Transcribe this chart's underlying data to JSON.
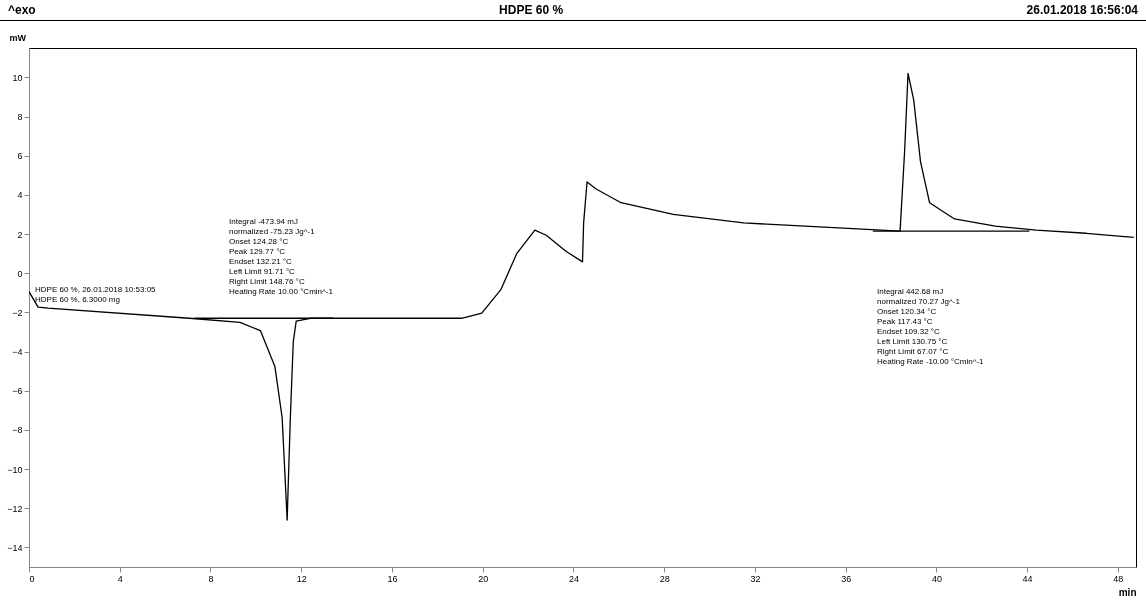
{
  "chart_data": {
    "type": "line",
    "title": "HDPE 60 %",
    "ylabel": "mW",
    "xlabel": "min",
    "xlim": [
      0,
      48.8
    ],
    "xticks": [
      0,
      4,
      8,
      12,
      16,
      20,
      24,
      28,
      32,
      36,
      40,
      44,
      48
    ],
    "ylim": [
      -15,
      11.5
    ],
    "yticks": [
      -14,
      -12,
      -10,
      -8,
      -6,
      -4,
      -2,
      0,
      2,
      4,
      6,
      8,
      10
    ],
    "grid": false,
    "line_style": "solid",
    "marker": "none",
    "series": [
      {
        "color": "#000000",
        "x": [
          0,
          0.4,
          0.84,
          7.07,
          9.3,
          10.2,
          10.84,
          11.16,
          11.38,
          11.52,
          11.65,
          11.78,
          12.4,
          19.07,
          19.96,
          20.8,
          21.5,
          22.3,
          22.8,
          23.7,
          24.4,
          24.45,
          24.6,
          25.0,
          26.1,
          28.4,
          31.5,
          35.9,
          38.4,
          38.6,
          38.75,
          39.0,
          39.3,
          39.7,
          40.8,
          42.6,
          44.4,
          46.6,
          48.7
        ],
        "values": [
          -0.94,
          -1.73,
          -1.78,
          -2.3,
          -2.51,
          -2.93,
          -4.76,
          -7.38,
          -12.6,
          -7.4,
          -3.5,
          -2.45,
          -2.3,
          -2.3,
          -2.04,
          -0.84,
          1.0,
          2.2,
          1.94,
          1.1,
          0.58,
          2.57,
          4.66,
          4.3,
          3.6,
          3.0,
          2.57,
          2.3,
          2.15,
          6.23,
          10.2,
          8.85,
          5.7,
          3.6,
          2.77,
          2.4,
          2.2,
          2.04,
          1.83
        ]
      },
      {
        "color": "#000000",
        "x": [
          7.3,
          13.4
        ],
        "values": [
          -2.3,
          -2.3
        ]
      },
      {
        "color": "#000000",
        "x": [
          37.2,
          44.1
        ],
        "values": [
          2.15,
          2.15
        ]
      }
    ],
    "annotations": [
      "^exo",
      "26.01.2018 16:56:04",
      "HDPE 60 %, 26.01.2018 10:53:05\nHDPE 60 %, 6.3000 mg",
      "Integral  -473.94 mJ\n  normalized  -75.23 Jg^-1\nOnset  124.28 °C\nPeak  129.77 °C\nEndset  132.21 °C\nLeft Limit  91.71 °C\nRight Limit  148.76 °C\nHeating Rate  10.00 °Cmin^-1",
      "Integral  442.68 mJ\n  normalized  70.27 Jg^-1\nOnset  120.34 °C\nPeak  117.43 °C\nEndset  109.32 °C\nLeft Limit  130.75 °C\nRight Limit  67.07 °C\nHeating Rate  -10.00 °Cmin^-1"
    ]
  }
}
